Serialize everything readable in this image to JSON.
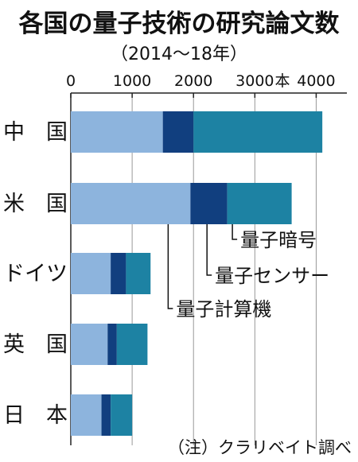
{
  "chart_data": {
    "type": "bar",
    "orientation": "horizontal",
    "stacked": true,
    "title": "各国の量子技術の研究論文数",
    "subtitle": "（2014～18年）",
    "x_unit": "本",
    "xlim": [
      0,
      4500
    ],
    "x_ticks": [
      0,
      1000,
      2000,
      3000,
      4000
    ],
    "x_tick_labels": [
      "0",
      "1000",
      "2000",
      "3000",
      "4000"
    ],
    "categories": [
      "中　国",
      "米　国",
      "ドイツ",
      "英　国",
      "日　本"
    ],
    "series": [
      {
        "name": "量子計算機",
        "color": "#8db4dd",
        "values": [
          1500,
          1950,
          650,
          600,
          500
        ]
      },
      {
        "name": "量子センサー",
        "color": "#113f7f",
        "values": [
          500,
          600,
          250,
          150,
          150
        ]
      },
      {
        "name": "量子暗号",
        "color": "#1d82a3",
        "values": [
          2100,
          1050,
          400,
          500,
          350
        ]
      }
    ],
    "annotation": "（注）クラリベイト調べ"
  }
}
